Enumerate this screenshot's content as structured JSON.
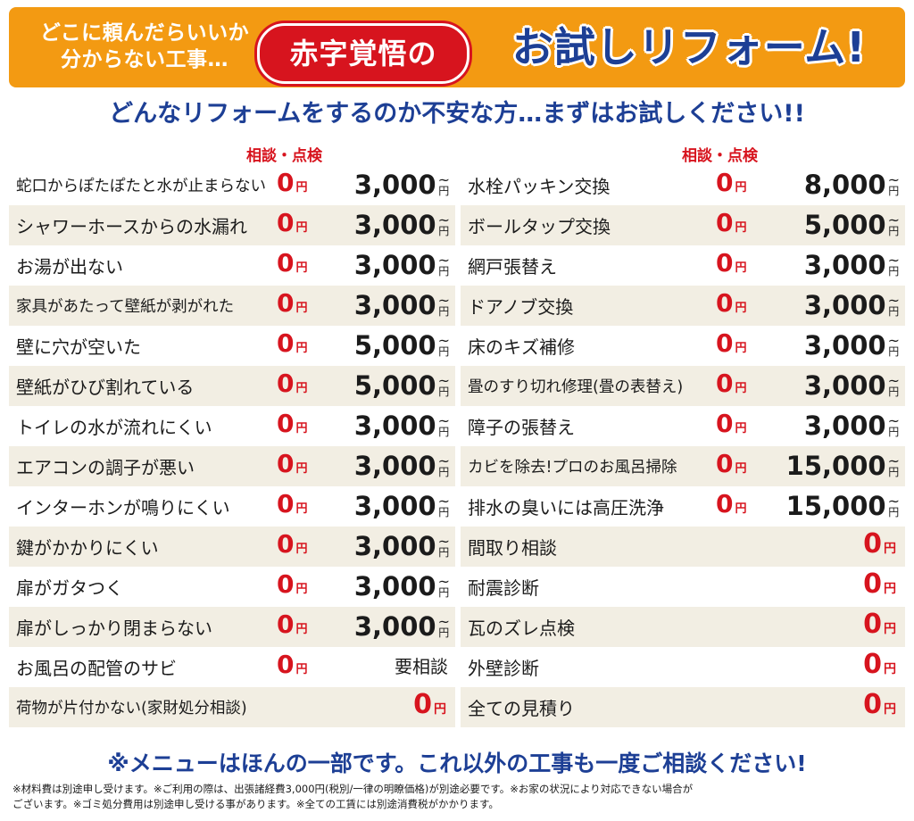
{
  "banner": {
    "line1": "どこに頼んだらいいか",
    "line2": "分からない工事…",
    "badge": "赤字覚悟の",
    "title": "お試しリフォーム!",
    "bg_color": "#f39a12",
    "badge_color": "#d7141e",
    "title_color": "#1d3f95"
  },
  "subtitle": "どんなリフォームをするのか不安な方…まずはお試しください!!",
  "column_header": "相談・点検",
  "yen": "円",
  "left_items": [
    {
      "label": "蛇口からぽたぽたと水が止まらない",
      "consult": "0",
      "price": "3,000"
    },
    {
      "label": "シャワーホースからの水漏れ",
      "consult": "0",
      "price": "3,000"
    },
    {
      "label": "お湯が出ない",
      "consult": "0",
      "price": "3,000"
    },
    {
      "label": "家具があたって壁紙が剥がれた",
      "consult": "0",
      "price": "3,000"
    },
    {
      "label": "壁に穴が空いた",
      "consult": "0",
      "price": "5,000"
    },
    {
      "label": "壁紙がひび割れている",
      "consult": "0",
      "price": "5,000"
    },
    {
      "label": "トイレの水が流れにくい",
      "consult": "0",
      "price": "3,000"
    },
    {
      "label": "エアコンの調子が悪い",
      "consult": "0",
      "price": "3,000"
    },
    {
      "label": "インターホンが鳴りにくい",
      "consult": "0",
      "price": "3,000"
    },
    {
      "label": "鍵がかかりにくい",
      "consult": "0",
      "price": "3,000"
    },
    {
      "label": "扉がガタつく",
      "consult": "0",
      "price": "3,000"
    },
    {
      "label": "扉がしっかり閉まらない",
      "consult": "0",
      "price": "3,000"
    },
    {
      "label": "お風呂の配管のサビ",
      "consult": "0",
      "price_text": "要相談"
    },
    {
      "label": "荷物が片付かない(家財処分相談)",
      "end_price": "0"
    }
  ],
  "right_items": [
    {
      "label": "水栓パッキン交換",
      "consult": "0",
      "price": "8,000"
    },
    {
      "label": "ボールタップ交換",
      "consult": "0",
      "price": "5,000"
    },
    {
      "label": "網戸張替え",
      "consult": "0",
      "price": "3,000"
    },
    {
      "label": "ドアノブ交換",
      "consult": "0",
      "price": "3,000"
    },
    {
      "label": "床のキズ補修",
      "consult": "0",
      "price": "3,000"
    },
    {
      "label": "畳のすり切れ修理(畳の表替え)",
      "consult": "0",
      "price": "3,000"
    },
    {
      "label": "障子の張替え",
      "consult": "0",
      "price": "3,000"
    },
    {
      "label": "カビを除去!プロのお風呂掃除",
      "consult": "0",
      "price": "15,000"
    },
    {
      "label": "排水の臭いには高圧洗浄",
      "consult": "0",
      "price": "15,000"
    },
    {
      "label": "間取り相談",
      "end_price": "0"
    },
    {
      "label": "耐震診断",
      "end_price": "0"
    },
    {
      "label": "瓦のズレ点検",
      "end_price": "0"
    },
    {
      "label": "外壁診断",
      "end_price": "0"
    },
    {
      "label": "全ての見積り",
      "end_price": "0"
    }
  ],
  "note": "※メニューはほんの一部です。これ以外の工事も一度ご相談ください!",
  "footnote_line1": "※材料費は別途申し受けます。※ご利用の際は、出張諸経費3,000円(税別/一律の明瞭価格)が別途必要です。※お家の状況により対応できない場合が",
  "footnote_line2": "ございます。※ゴミ処分費用は別途申し受ける事があります。※全ての工賃には別途消費税がかかります。"
}
